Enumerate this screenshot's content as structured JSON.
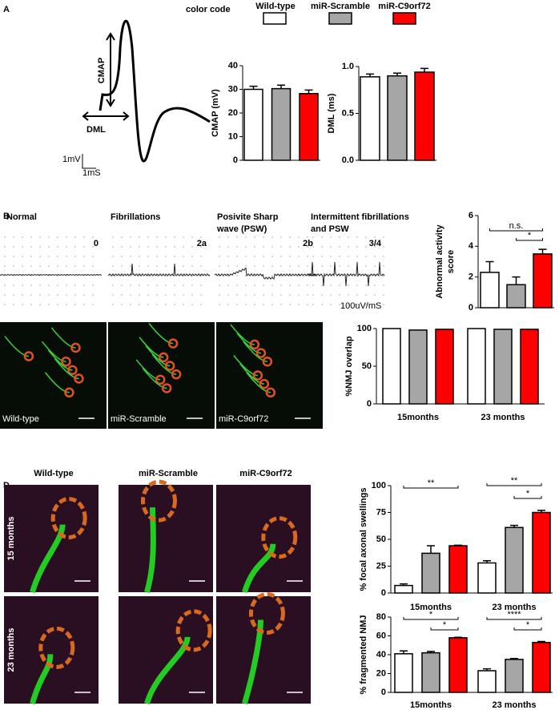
{
  "panel_labels": [
    "A",
    "B",
    "C",
    "D"
  ],
  "color_code": {
    "title": "color code",
    "items": [
      {
        "name": "Wild-type",
        "color": "#ffffff"
      },
      {
        "name": "miR-Scramble",
        "color": "#a6a6a6"
      },
      {
        "name": "miR-C9orf72",
        "color": "#ff0000"
      }
    ]
  },
  "waveform": {
    "labels": [
      "CMAP",
      "DML"
    ],
    "scale": [
      "1mV",
      "1mS"
    ]
  },
  "traces": [
    {
      "title": [
        "Normal"
      ],
      "code": "0"
    },
    {
      "title": [
        "Fibrillations"
      ],
      "code": "2a"
    },
    {
      "title": [
        "Posivite Sharp",
        "wave (PSW)"
      ],
      "code": "2b"
    },
    {
      "title": [
        "Intermittent fibrillations",
        "and PSW"
      ],
      "code": "3/4"
    }
  ],
  "trace_scale": "100uV/mS",
  "nmj_images": [
    "Wild-type",
    "miR-Scramble",
    "miR-C9orf72"
  ],
  "nmj_grid": {
    "columns": [
      "Wild-type",
      "miR-Scramble",
      "miR-C9orf72"
    ],
    "rows": [
      "15 months",
      "23 months"
    ]
  },
  "chart_data": [
    {
      "type": "bar",
      "ylabel": "CMAP (mV)",
      "ylim": [
        0,
        40
      ],
      "yticks": [
        0,
        10,
        20,
        30,
        40
      ],
      "values": [
        30,
        30.3,
        28.2
      ],
      "errors": [
        1.3,
        1.5,
        1.5
      ],
      "colors": [
        "#ffffff",
        "#a6a6a6",
        "#ff0000"
      ]
    },
    {
      "type": "bar",
      "ylabel": "DML (ms)",
      "ylim": [
        0,
        1
      ],
      "yticks": [
        {
          "value": 0,
          "label": "0.0"
        },
        0.5,
        {
          "value": 1,
          "label": "1.0"
        }
      ],
      "values": [
        0.89,
        0.9,
        0.94
      ],
      "errors": [
        0.03,
        0.03,
        0.04
      ],
      "colors": [
        "#ffffff",
        "#a6a6a6",
        "#ff0000"
      ]
    },
    {
      "type": "bar",
      "ylabel": [
        "Abnormal activity",
        "score"
      ],
      "ylim": [
        0,
        6
      ],
      "yticks": [
        0,
        2,
        4,
        6
      ],
      "values": [
        2.3,
        1.5,
        3.5
      ],
      "errors": [
        0.7,
        0.5,
        0.3
      ],
      "colors": [
        "#ffffff",
        "#a6a6a6",
        "#ff0000"
      ],
      "annotations": [
        "n.s.",
        "*"
      ]
    },
    {
      "type": "bar",
      "ylabel": "%NMJ overlap",
      "ylim": [
        0,
        100
      ],
      "yticks": [
        0,
        50,
        100
      ],
      "categories": [
        "15months",
        "23 months"
      ],
      "series": [
        {
          "color": "#ffffff",
          "values": [
            100,
            100
          ]
        },
        {
          "color": "#a6a6a6",
          "values": [
            98,
            99
          ]
        },
        {
          "color": "#ff0000",
          "values": [
            99,
            99
          ]
        }
      ]
    },
    {
      "type": "bar",
      "ylabel": "% focal axonal swellings",
      "ylim": [
        0,
        100
      ],
      "yticks": [
        0,
        25,
        50,
        75,
        100
      ],
      "categories": [
        "15months",
        "23 months"
      ],
      "series": [
        {
          "color": "#ffffff",
          "values": [
            7,
            28
          ],
          "errors": [
            1.5,
            2
          ]
        },
        {
          "color": "#a6a6a6",
          "values": [
            37,
            61
          ],
          "errors": [
            7,
            2
          ]
        },
        {
          "color": "#ff0000",
          "values": [
            44,
            75
          ],
          "errors": [
            0.5,
            2
          ]
        }
      ],
      "annotations": [
        "**",
        "**",
        "*"
      ]
    },
    {
      "type": "bar",
      "ylabel": "% fragmented NMJ",
      "ylim": [
        0,
        80
      ],
      "yticks": [
        0,
        20,
        40,
        60,
        80
      ],
      "categories": [
        "15months",
        "23 months"
      ],
      "series": [
        {
          "color": "#ffffff",
          "values": [
            41,
            23
          ],
          "errors": [
            3,
            2
          ]
        },
        {
          "color": "#a6a6a6",
          "values": [
            42,
            35
          ],
          "errors": [
            1.5,
            1
          ]
        },
        {
          "color": "#ff0000",
          "values": [
            58,
            53
          ],
          "errors": [
            0.5,
            1
          ]
        }
      ],
      "annotations": [
        "*",
        "*",
        "****",
        "*"
      ]
    }
  ]
}
